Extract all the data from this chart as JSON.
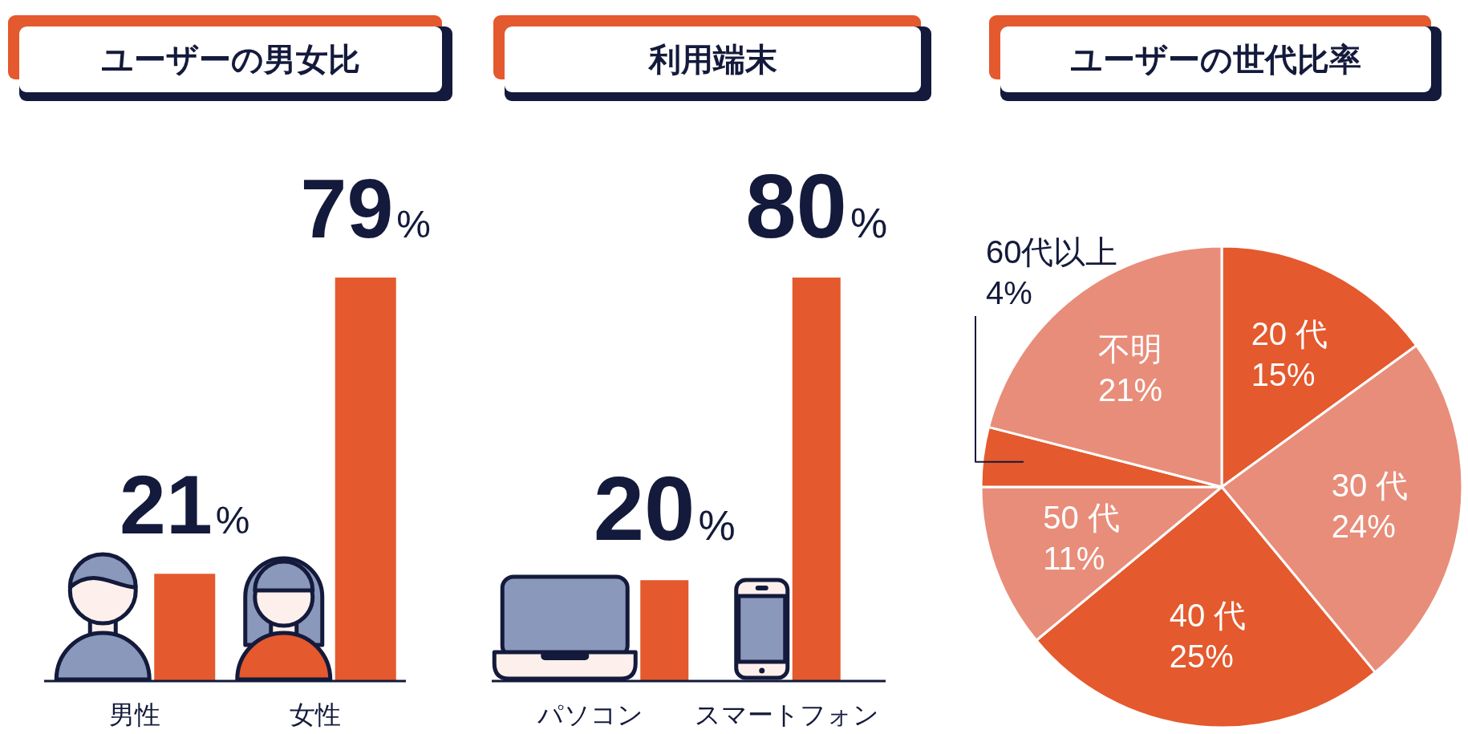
{
  "chart_data": [
    {
      "type": "bar",
      "title": "ユーザーの男女比",
      "categories": [
        "男性",
        "女性"
      ],
      "values": [
        21,
        79
      ],
      "value_labels": [
        "21%",
        "79%"
      ],
      "color": "#e4592d"
    },
    {
      "type": "bar",
      "title": "利用端末",
      "categories": [
        "パソコン",
        "スマートフォン"
      ],
      "values": [
        20,
        80
      ],
      "value_labels": [
        "20%",
        "80%"
      ],
      "color": "#e4592d"
    },
    {
      "type": "pie",
      "title": "ユーザーの世代比率",
      "categories": [
        "20 代",
        "30 代",
        "40 代",
        "50 代",
        "60代以上",
        "不明"
      ],
      "values": [
        15,
        24,
        25,
        11,
        4,
        21
      ],
      "value_labels": [
        "15%",
        "24%",
        "25%",
        "11%",
        "4%",
        "21%"
      ],
      "colors": [
        "#e4592d",
        "#e88d7a",
        "#e4592d",
        "#e88d7a",
        "#e4592d",
        "#e88d7a"
      ]
    }
  ]
}
